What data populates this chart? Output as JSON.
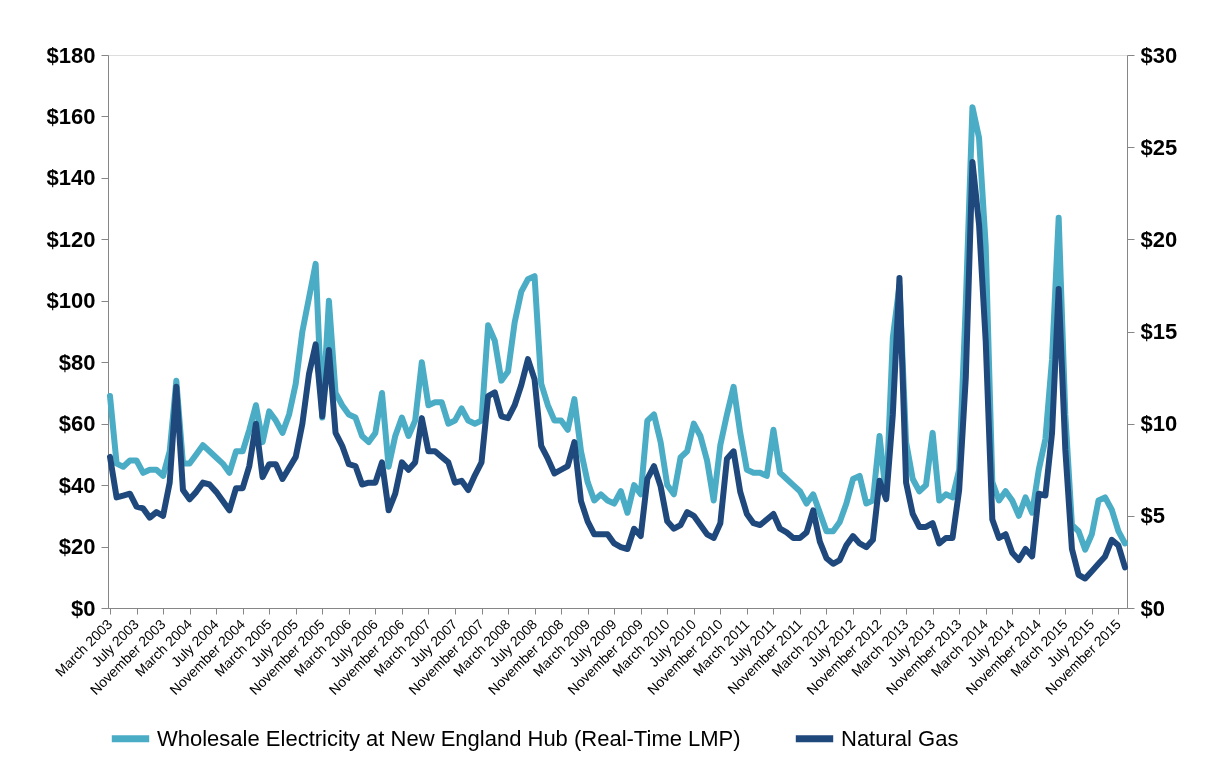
{
  "chart_data": {
    "type": "line",
    "categories": [
      "March 2003",
      null,
      null,
      null,
      "July 2003",
      null,
      null,
      null,
      "November 2003",
      null,
      null,
      null,
      "March 2004",
      null,
      null,
      null,
      "July 2004",
      null,
      null,
      null,
      "November 2004",
      null,
      null,
      null,
      "March 2005",
      null,
      null,
      null,
      "July 2005",
      null,
      null,
      null,
      "November 2005",
      null,
      null,
      null,
      "March 2006",
      null,
      null,
      null,
      "July 2006",
      null,
      null,
      null,
      "November 2006",
      null,
      null,
      null,
      "March 2007",
      null,
      null,
      null,
      "July 2007",
      null,
      null,
      null,
      "November 2007",
      null,
      null,
      null,
      "March 2008",
      null,
      null,
      null,
      "July 2008",
      null,
      null,
      null,
      "November 2008",
      null,
      null,
      null,
      "March 2009",
      null,
      null,
      null,
      "July 2009",
      null,
      null,
      null,
      "November 2009",
      null,
      null,
      null,
      "March 2010",
      null,
      null,
      null,
      "July 2010",
      null,
      null,
      null,
      "November 2010",
      null,
      null,
      null,
      "March 2011",
      null,
      null,
      null,
      "July 2011",
      null,
      null,
      null,
      "November 2011",
      null,
      null,
      null,
      "March 2012",
      null,
      null,
      null,
      "July 2012",
      null,
      null,
      null,
      "November 2012",
      null,
      null,
      null,
      "March 2013",
      null,
      null,
      null,
      "July 2013",
      null,
      null,
      null,
      "November 2013",
      null,
      null,
      null,
      "March 2014",
      null,
      null,
      null,
      "July 2014",
      null,
      null,
      null,
      "November 2014",
      null,
      null,
      null,
      "March 2015",
      null,
      null,
      null,
      "July 2015",
      null,
      null,
      null,
      "November 2015",
      null
    ],
    "series": [
      {
        "name": "Wholesale Electricity at New England Hub (Real-Time LMP)",
        "color": "#4bacc6",
        "values": [
          69,
          47,
          46,
          48,
          48,
          44,
          45,
          45,
          43,
          51,
          74,
          47,
          47,
          50,
          53,
          51,
          49,
          47,
          44,
          51,
          51,
          58,
          66,
          54,
          64,
          61,
          57,
          63,
          73,
          90,
          101,
          112,
          62,
          100,
          70,
          66,
          63,
          62,
          56,
          54,
          57,
          70,
          46,
          56,
          62,
          56,
          61,
          80,
          66,
          67,
          67,
          60,
          61,
          65,
          61,
          60,
          61,
          92,
          87,
          74,
          77,
          93,
          103,
          107,
          108,
          73,
          66,
          61,
          61,
          58,
          68,
          51,
          41,
          35,
          37,
          35,
          34,
          38,
          31,
          40,
          37,
          61,
          63,
          54,
          40,
          37,
          49,
          51,
          60,
          56,
          48,
          35,
          53,
          63,
          72,
          57,
          45,
          44,
          44,
          43,
          58,
          44,
          42,
          40,
          38,
          34,
          37,
          31,
          25,
          25,
          28,
          34,
          42,
          43,
          34,
          35,
          56,
          36,
          88,
          105,
          54,
          42,
          38,
          40,
          57,
          35,
          37,
          36,
          45,
          99,
          163,
          153,
          118,
          41,
          35,
          38,
          35,
          30,
          36,
          31,
          45,
          55,
          81,
          127,
          63,
          27,
          25,
          19,
          24,
          35,
          36,
          32,
          25,
          21
        ]
      },
      {
        "name": "Natural Gas",
        "color": "#1f497d",
        "axis": "y2",
        "values": [
          8.2,
          6.0,
          6.1,
          6.2,
          5.5,
          5.4,
          4.9,
          5.2,
          5.0,
          6.8,
          12.0,
          6.4,
          5.9,
          6.3,
          6.8,
          6.7,
          6.3,
          5.8,
          5.3,
          6.5,
          6.5,
          7.7,
          10.0,
          7.1,
          7.8,
          7.8,
          7.0,
          7.6,
          8.2,
          10.0,
          12.7,
          14.3,
          10.4,
          14.0,
          9.5,
          8.8,
          7.8,
          7.7,
          6.7,
          6.8,
          6.8,
          7.9,
          5.3,
          6.2,
          7.9,
          7.5,
          7.9,
          10.3,
          8.5,
          8.5,
          8.2,
          7.9,
          6.8,
          6.9,
          6.4,
          7.2,
          7.9,
          11.5,
          11.7,
          10.4,
          10.3,
          11.0,
          12.1,
          13.5,
          12.4,
          8.8,
          8.1,
          7.3,
          7.5,
          7.7,
          9.0,
          5.8,
          4.7,
          4.0,
          4.0,
          4.0,
          3.5,
          3.3,
          3.2,
          4.3,
          3.9,
          7.0,
          7.7,
          6.6,
          4.7,
          4.3,
          4.5,
          5.2,
          5.0,
          4.5,
          4.0,
          3.8,
          4.6,
          8.1,
          8.5,
          6.3,
          5.1,
          4.6,
          4.5,
          4.8,
          5.1,
          4.3,
          4.1,
          3.8,
          3.8,
          4.1,
          5.3,
          3.6,
          2.7,
          2.4,
          2.6,
          3.4,
          3.9,
          3.5,
          3.3,
          3.7,
          6.9,
          5.9,
          10.5,
          17.9,
          6.8,
          5.1,
          4.4,
          4.4,
          4.6,
          3.5,
          3.8,
          3.8,
          6.4,
          12.5,
          24.2,
          20.8,
          14.5,
          4.8,
          3.8,
          4.0,
          3.0,
          2.6,
          3.2,
          2.8,
          6.2,
          6.1,
          9.5,
          17.3,
          8.6,
          3.2,
          1.8,
          1.6,
          2.0,
          2.4,
          2.8,
          3.7,
          3.4,
          2.2
        ]
      }
    ],
    "ylim": [
      0,
      180
    ],
    "yticks": [
      {
        "value": 0,
        "label": "$0"
      },
      {
        "value": 20,
        "label": "$20"
      },
      {
        "value": 40,
        "label": "$40"
      },
      {
        "value": 60,
        "label": "$60"
      },
      {
        "value": 80,
        "label": "$80"
      },
      {
        "value": 100,
        "label": "$100"
      },
      {
        "value": 120,
        "label": "$120"
      },
      {
        "value": 140,
        "label": "$140"
      },
      {
        "value": 160,
        "label": "$160"
      },
      {
        "value": 180,
        "label": "$180"
      }
    ],
    "y2lim": [
      0,
      30
    ],
    "y2ticks": [
      {
        "value": 0,
        "label": "$0"
      },
      {
        "value": 5,
        "label": "$5"
      },
      {
        "value": 10,
        "label": "$10"
      },
      {
        "value": 15,
        "label": "$15"
      },
      {
        "value": 20,
        "label": "$20"
      },
      {
        "value": 25,
        "label": "$25"
      },
      {
        "value": 30,
        "label": "$30"
      }
    ],
    "legend": "bottom",
    "line_style": "solid",
    "marker": "none"
  }
}
